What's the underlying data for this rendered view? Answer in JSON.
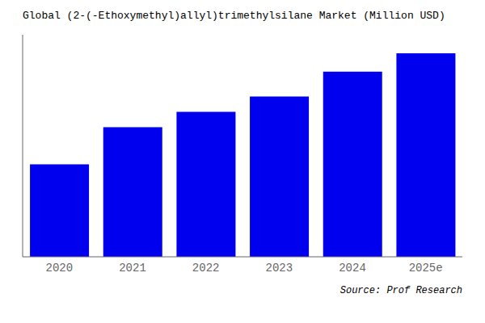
{
  "chart_data": {
    "type": "bar",
    "title": "Global (2-(-Ethoxymethyl)allyl)trimethylsilane Market (Million USD)",
    "categories": [
      "2020",
      "2021",
      "2022",
      "2023",
      "2024",
      "2025e"
    ],
    "values": [
      3.0,
      4.2,
      4.7,
      5.2,
      6.0,
      6.6
    ],
    "color": "#0000ee",
    "ylim": [
      0,
      7.2
    ],
    "yticks": [],
    "grid": false,
    "tick_labels": "x",
    "annotations": [
      "Source: Prof Research"
    ]
  }
}
